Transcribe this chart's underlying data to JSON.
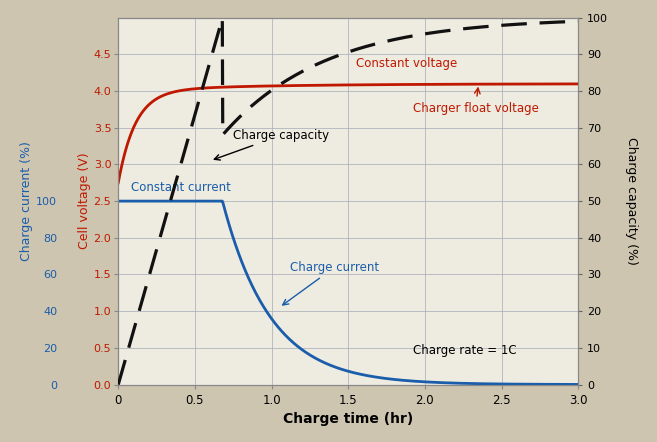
{
  "background_color": "#cdc5b0",
  "plot_bg_color": "#eeebe0",
  "grid_color": "#aab0bc",
  "xlabel": "Charge time (hr)",
  "ylabel_left_voltage": "Cell voltage (V)",
  "ylabel_left_current": "Charge current (%)",
  "ylabel_right": "Charge capacity (%)",
  "xlim": [
    0,
    3.0
  ],
  "ylim_voltage": [
    0,
    5.0
  ],
  "ylim_capacity": [
    0,
    100
  ],
  "voltage_color": "#c01800",
  "current_color": "#1a5dab",
  "capacity_color": "#111111",
  "charge_rate_text": "Charge rate = 1C",
  "label_constant_voltage": "Constant voltage",
  "label_charger_float": "Charger float voltage",
  "label_charge_capacity": "Charge capacity",
  "label_charge_current": "Charge current",
  "label_constant_current": "Constant current",
  "voltage_ticks": [
    0.0,
    0.5,
    1.0,
    1.5,
    2.0,
    2.5,
    3.0,
    3.5,
    4.0,
    4.5
  ],
  "current_pct_ticks": [
    0,
    20,
    40,
    60,
    80,
    100
  ],
  "current_amp_ticks": [
    0.0,
    0.5,
    1.0,
    1.5,
    2.0,
    2.5
  ],
  "capacity_ticks": [
    0,
    10,
    20,
    30,
    40,
    50,
    60,
    70,
    80,
    90,
    100
  ],
  "xticks": [
    0,
    0.5,
    1.0,
    1.5,
    2.0,
    2.5,
    3.0
  ],
  "xticklabels": [
    "0",
    "0.5",
    "1.0",
    "1.5",
    "2.0",
    "2.5",
    "3.0"
  ]
}
